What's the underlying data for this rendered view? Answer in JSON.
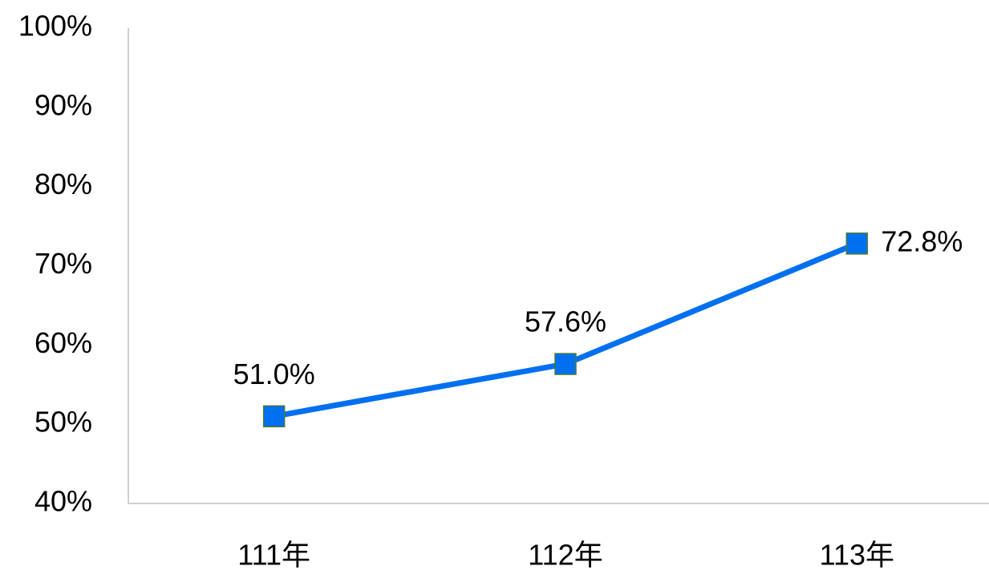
{
  "chart_data": {
    "type": "line",
    "categories": [
      "111年",
      "112年",
      "113年"
    ],
    "series": [
      {
        "name": null,
        "color": "#0070f0",
        "values": [
          51.0,
          57.6,
          72.8
        ],
        "value_labels": [
          "51.0%",
          "57.6%",
          "72.8%"
        ]
      }
    ],
    "ylim": [
      40,
      100
    ],
    "yticks": [
      {
        "value": 40,
        "label": "40%"
      },
      {
        "value": 50,
        "label": "50%"
      },
      {
        "value": 60,
        "label": "60%"
      },
      {
        "value": 70,
        "label": "70%"
      },
      {
        "value": 80,
        "label": "80%"
      },
      {
        "value": 90,
        "label": "90%"
      },
      {
        "value": 100,
        "label": "100%"
      }
    ],
    "grid": false
  }
}
